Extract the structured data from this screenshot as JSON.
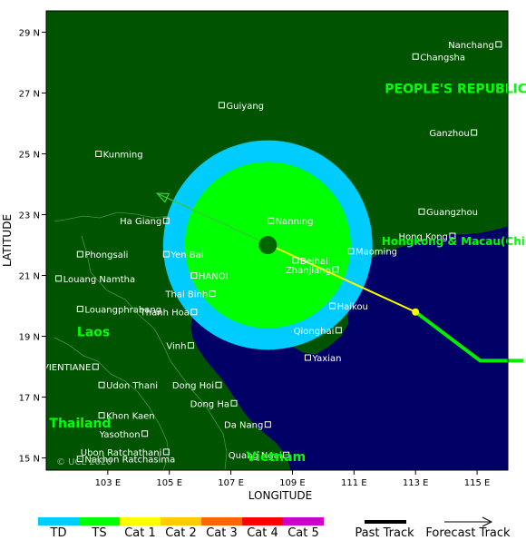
{
  "axes": {
    "xlabel": "LONGITUDE",
    "ylabel": "LATITUDE",
    "x_ticks": [
      "103 E",
      "105 E",
      "107 E",
      "109 E",
      "111 E",
      "113 E",
      "115 E"
    ],
    "y_ticks": [
      "29 N",
      "27 N",
      "25 N",
      "23 N",
      "21 N",
      "19 N",
      "17 N",
      "15 N"
    ],
    "lon_range": [
      101.0,
      116.0
    ],
    "lat_range": [
      14.6,
      29.7
    ]
  },
  "storm": {
    "center_lon": 108.2,
    "center_lat": 22.0,
    "ts_radius_deg": 2.7,
    "td_radius_deg": 3.4,
    "past_track": [
      [
        116.5,
        18.2
      ],
      [
        115.1,
        18.2
      ],
      [
        113.0,
        19.8
      ]
    ],
    "forecast_track": [
      [
        113.0,
        19.8
      ],
      [
        104.6,
        23.7
      ]
    ],
    "forecast_point": [
      113.0,
      19.8
    ]
  },
  "cities": [
    {
      "name": "Nanchang",
      "lon": 115.7,
      "lat": 28.6,
      "label_side": "left"
    },
    {
      "name": "Changsha",
      "lon": 113.0,
      "lat": 28.2,
      "label_side": "right"
    },
    {
      "name": "Guiyang",
      "lon": 106.7,
      "lat": 26.6,
      "label_side": "right"
    },
    {
      "name": "Ganzhou",
      "lon": 114.9,
      "lat": 25.7,
      "label_side": "left"
    },
    {
      "name": "Kunming",
      "lon": 102.7,
      "lat": 25.0,
      "label_side": "right"
    },
    {
      "name": "Guangzhou",
      "lon": 113.2,
      "lat": 23.1,
      "label_side": "right"
    },
    {
      "name": "Ha Giang",
      "lon": 104.9,
      "lat": 22.8,
      "label_side": "left"
    },
    {
      "name": "Nanning",
      "lon": 108.3,
      "lat": 22.8,
      "label_side": "right"
    },
    {
      "name": "Hong Kong",
      "lon": 114.2,
      "lat": 22.3,
      "label_side": "left"
    },
    {
      "name": "Phongsali",
      "lon": 102.1,
      "lat": 21.7,
      "label_side": "right"
    },
    {
      "name": "Yen Bai",
      "lon": 104.9,
      "lat": 21.7,
      "label_side": "right"
    },
    {
      "name": "Beihai",
      "lon": 109.1,
      "lat": 21.5,
      "label_side": "right"
    },
    {
      "name": "Maoming",
      "lon": 110.9,
      "lat": 21.8,
      "label_side": "right"
    },
    {
      "name": "Zhanjiang",
      "lon": 110.4,
      "lat": 21.2,
      "label_side": "left"
    },
    {
      "name": "Louang Namtha",
      "lon": 101.4,
      "lat": 20.9,
      "label_side": "right"
    },
    {
      "name": "HANOI",
      "lon": 105.8,
      "lat": 21.0,
      "label_side": "right"
    },
    {
      "name": "Thai Binh",
      "lon": 106.4,
      "lat": 20.4,
      "label_side": "left"
    },
    {
      "name": "Haikou",
      "lon": 110.3,
      "lat": 20.0,
      "label_side": "right"
    },
    {
      "name": "Louangphrabang",
      "lon": 102.1,
      "lat": 19.9,
      "label_side": "right"
    },
    {
      "name": "Thanh Hoa",
      "lon": 105.8,
      "lat": 19.8,
      "label_side": "left"
    },
    {
      "name": "Qionghai",
      "lon": 110.5,
      "lat": 19.2,
      "label_side": "left"
    },
    {
      "name": "Vinh",
      "lon": 105.7,
      "lat": 18.7,
      "label_side": "left"
    },
    {
      "name": "Yaxian",
      "lon": 109.5,
      "lat": 18.3,
      "label_side": "right"
    },
    {
      "name": "VIENTIANE",
      "lon": 102.6,
      "lat": 18.0,
      "label_side": "left"
    },
    {
      "name": "Udon Thani",
      "lon": 102.8,
      "lat": 17.4,
      "label_side": "right"
    },
    {
      "name": "Dong Hoi",
      "lon": 106.6,
      "lat": 17.4,
      "label_side": "left"
    },
    {
      "name": "Dong Ha",
      "lon": 107.1,
      "lat": 16.8,
      "label_side": "left"
    },
    {
      "name": "Khon Kaen",
      "lon": 102.8,
      "lat": 16.4,
      "label_side": "right"
    },
    {
      "name": "Da Nang",
      "lon": 108.2,
      "lat": 16.1,
      "label_side": "left"
    },
    {
      "name": "Yasothon",
      "lon": 104.2,
      "lat": 15.8,
      "label_side": "left"
    },
    {
      "name": "Ubon Ratchathani",
      "lon": 104.9,
      "lat": 15.2,
      "label_side": "left"
    },
    {
      "name": "Quang Ngai",
      "lon": 108.8,
      "lat": 15.1,
      "label_side": "left"
    },
    {
      "name": "Nakhon Ratchasima",
      "lon": 102.1,
      "lat": 14.97,
      "label_side": "right"
    }
  ],
  "countries": [
    {
      "name": "PEOPLE'S REPUBLIC",
      "lon": 112.0,
      "lat": 27.0,
      "size": "big"
    },
    {
      "name": "Hongkong & Macau(China)",
      "lon": 111.9,
      "lat": 22.0,
      "size": "small"
    },
    {
      "name": "Laos",
      "lon": 102.0,
      "lat": 19.0,
      "size": "big"
    },
    {
      "name": "Thailand",
      "lon": 101.1,
      "lat": 16.0,
      "size": "big"
    },
    {
      "name": "Vietnam",
      "lon": 107.5,
      "lat": 14.9,
      "size": "big"
    }
  ],
  "copyright": "© UCL 2020",
  "legend": {
    "categories": [
      {
        "label": "TD",
        "color": "#00ccff"
      },
      {
        "label": "TS",
        "color": "#00ff00"
      },
      {
        "label": "Cat 1",
        "color": "#ffff00"
      },
      {
        "label": "Cat 2",
        "color": "#ffcc00"
      },
      {
        "label": "Cat 3",
        "color": "#ff6600"
      },
      {
        "label": "Cat 4",
        "color": "#ff0000"
      },
      {
        "label": "Cat 5",
        "color": "#cc00cc"
      }
    ],
    "past_track_label": "Past Track",
    "forecast_track_label": "Forecast Track"
  },
  "colors": {
    "land": "#005400",
    "sea": "#000066",
    "td_wind": "#00ccff",
    "ts_wind": "#00ff00",
    "past_track": "#00ee00",
    "forecast_track": "#ffff00",
    "forecast_line": "#33cc33"
  }
}
